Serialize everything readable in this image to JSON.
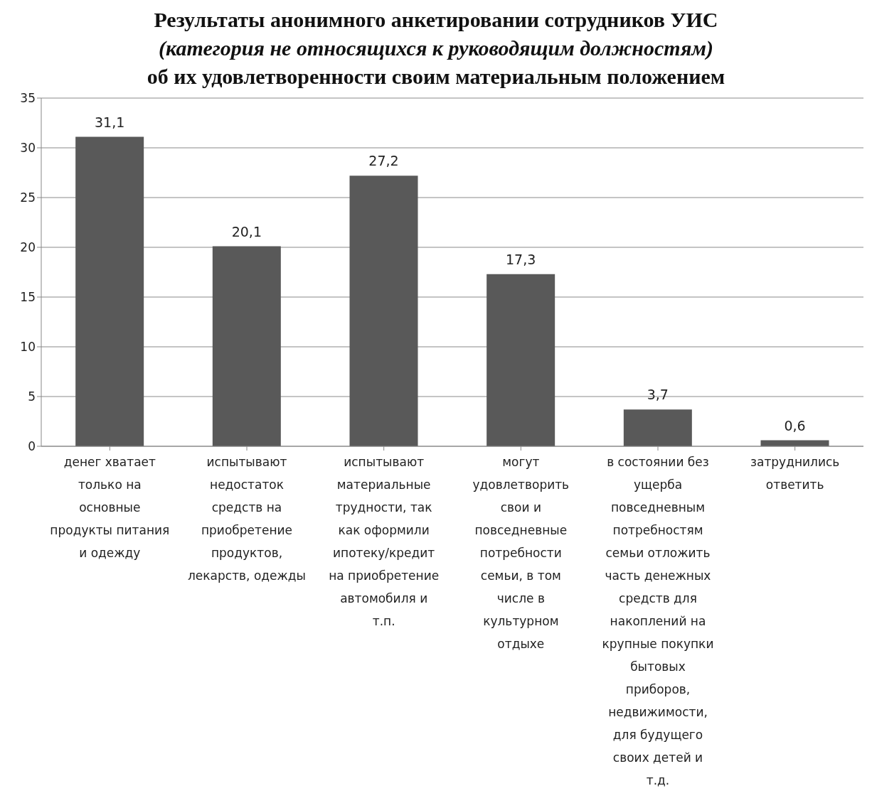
{
  "chart_data": {
    "type": "bar",
    "title": "Результаты анонимного анкетировании сотрудников УИС\n(категория не относящихся к руководящим должностям)\nоб их удовлетворенности своим материальным положением",
    "categories": [
      "денег хватает только на основные продукты питания и одежду",
      "испытывают недостаток средств на приобретение продуктов, лекарств, одежды",
      "испытывают материальные трудности, так как оформили ипотеку/кредит на приобретение автомобиля и т.п.",
      "могут удовлетворить свои и повседневные потребности семьи, в том числе в культурном отдыхе",
      "в состоянии  без ущерба повседневным потребностям семьи отложить часть денежных средств для накоплений на крупные покупки бытовых приборов, недвижимости, для будущего своих детей и т.д.",
      "затруднились ответить"
    ],
    "values": [
      31.1,
      20.1,
      27.2,
      17.3,
      3.7,
      0.6
    ],
    "color": "#595959",
    "ylim": [
      0,
      35
    ],
    "yticks": [
      0,
      5,
      10,
      15,
      20,
      25,
      30,
      35
    ],
    "grid": "y",
    "value_labels": [
      "31,1",
      "20,1",
      "27,2",
      "17,3",
      "3,7",
      "0,6"
    ]
  }
}
